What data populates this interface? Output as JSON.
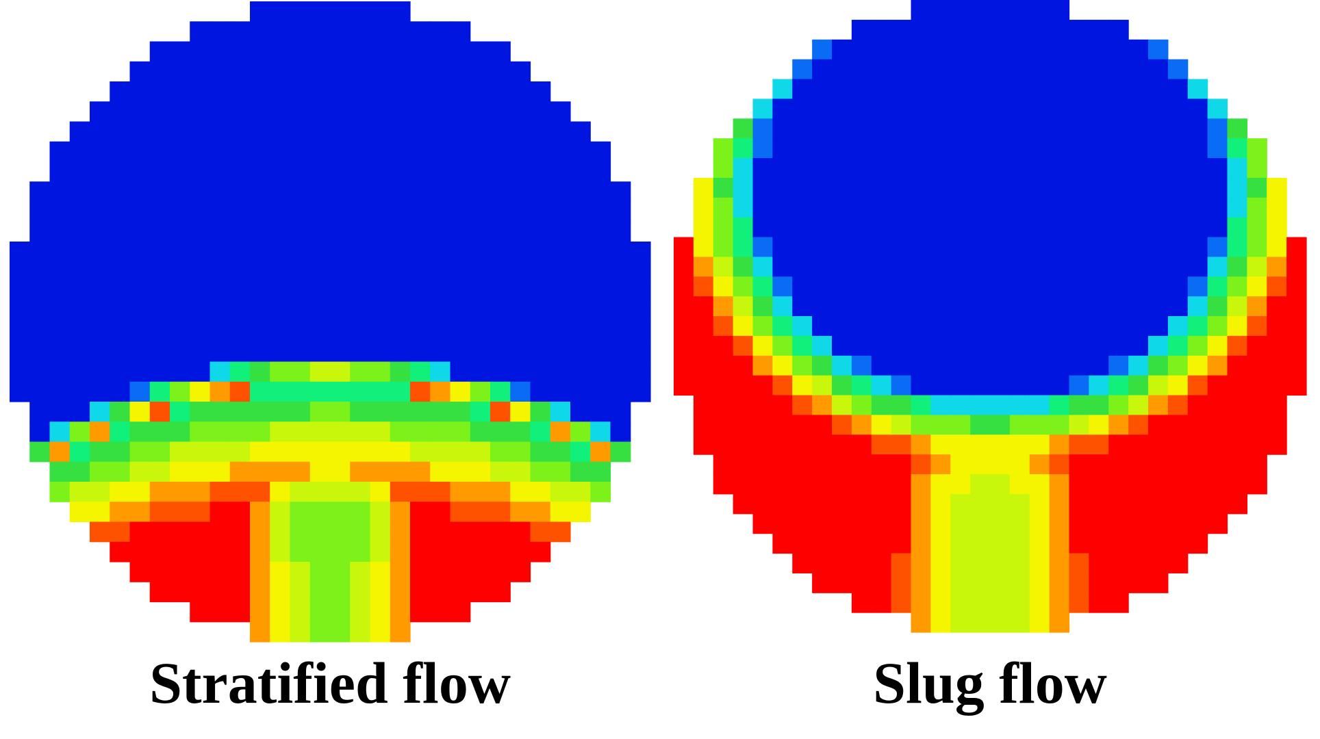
{
  "palette": {
    "blue": "#0015e0",
    "light_blue": "#0a6cf5",
    "cyan": "#0fd8e8",
    "spring_green": "#10f07a",
    "green": "#35e040",
    "lime": "#7cf21a",
    "yellow_green": "#c8f70b",
    "yellow": "#f5f500",
    "orange": "#ff9a00",
    "dark_orange": "#ff5200",
    "red": "#ff0000"
  },
  "panels": [
    {
      "name": "stratified",
      "caption": "Stratified flow",
      "colormap": "jet",
      "grid_resolution": 32
    },
    {
      "name": "slug",
      "caption": "Slug flow",
      "colormap": "jet",
      "grid_resolution": 32
    }
  ]
}
